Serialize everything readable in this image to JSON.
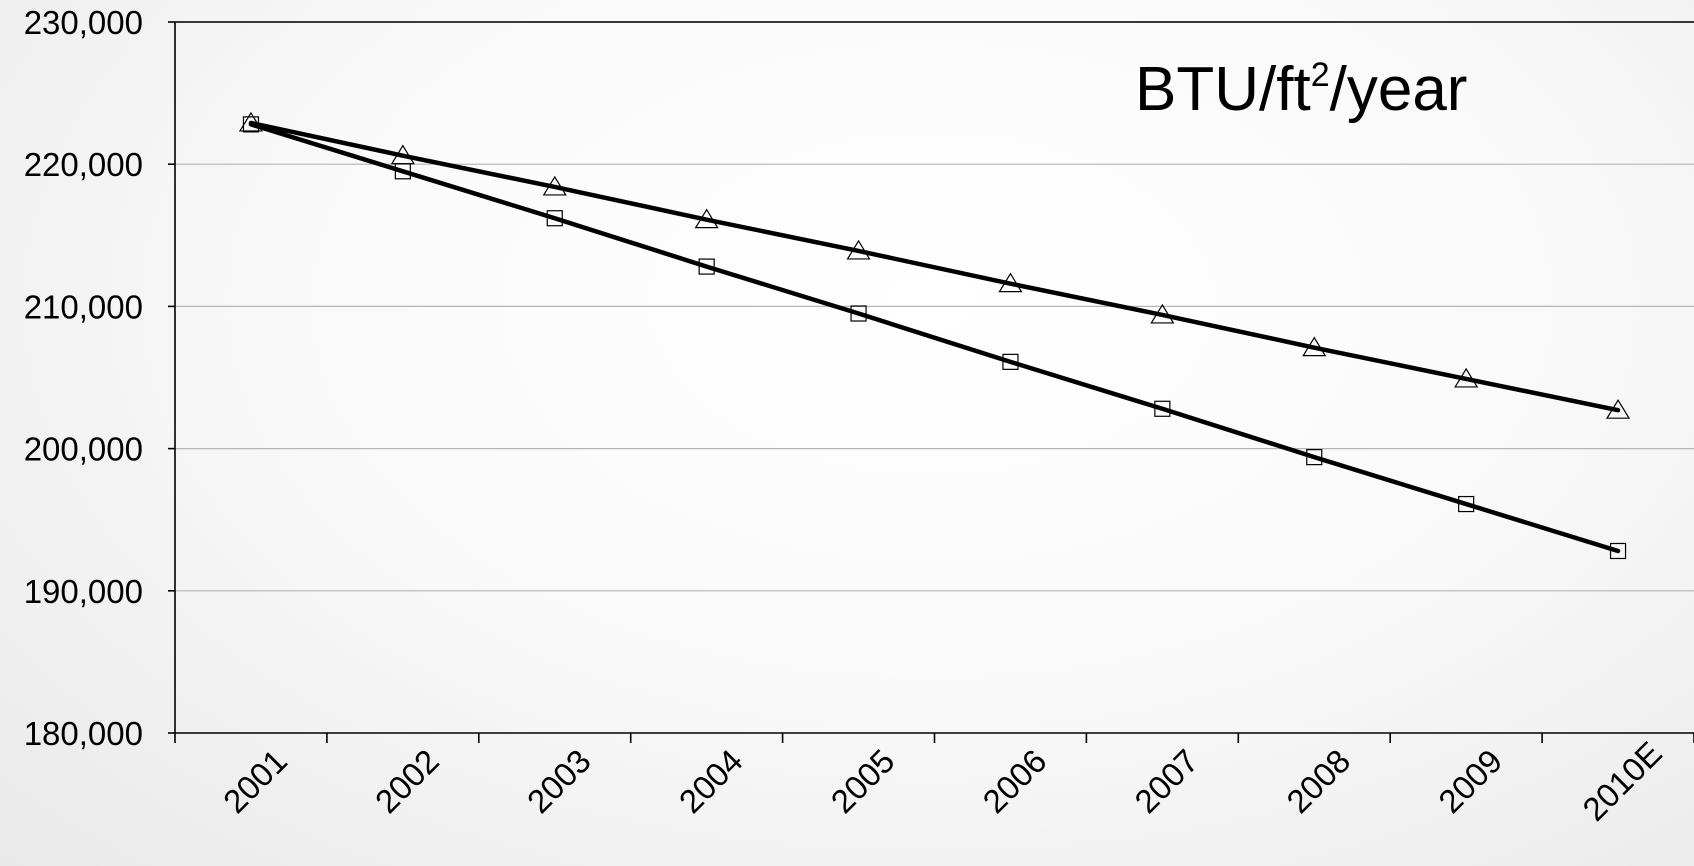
{
  "chart_data": {
    "type": "line",
    "title": {
      "prefix": "BTU/ft",
      "superscript": "2",
      "suffix": "/year"
    },
    "xlabel": "",
    "ylabel": "",
    "categories": [
      "2001",
      "2002",
      "2003",
      "2004",
      "2005",
      "2006",
      "2007",
      "2008",
      "2009",
      "2010E"
    ],
    "ylim": [
      180000,
      230000
    ],
    "yticks": [
      180000,
      190000,
      200000,
      210000,
      220000,
      230000
    ],
    "ytick_labels": [
      "180,000",
      "190,000",
      "200,000",
      "210,000",
      "220,000",
      "230,000"
    ],
    "grid": true,
    "legend": "none",
    "series": [
      {
        "marker": "triangle",
        "values": [
          222900,
          220600,
          218400,
          216100,
          213900,
          211600,
          209400,
          207100,
          204900,
          202700
        ]
      },
      {
        "marker": "square",
        "values": [
          222800,
          219500,
          216200,
          212800,
          209500,
          206100,
          202800,
          199400,
          196100,
          192800
        ]
      }
    ]
  }
}
